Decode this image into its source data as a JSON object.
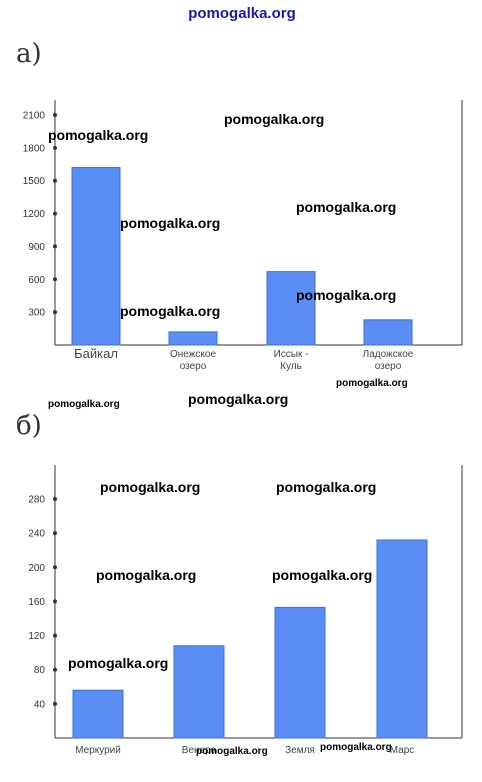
{
  "chart_data": [
    {
      "type": "bar",
      "part_label": "а)",
      "categories": [
        [
          "Байкал"
        ],
        [
          "Онежское",
          "озеро"
        ],
        [
          "Иссык -",
          "Куль"
        ],
        [
          "Ладожское",
          "озеро"
        ]
      ],
      "values": [
        1620,
        120,
        670,
        230
      ],
      "y_ticks": [
        300,
        600,
        900,
        1200,
        1500,
        1800,
        2100
      ],
      "ylim": [
        0,
        2100
      ],
      "xlabel": "",
      "ylabel": "",
      "grid": false
    },
    {
      "type": "bar",
      "part_label": "б)",
      "categories": [
        [
          "Меркурий"
        ],
        [
          "Венера"
        ],
        [
          "Земля"
        ],
        [
          "Марс"
        ]
      ],
      "values": [
        56,
        108,
        153,
        232
      ],
      "y_ticks": [
        40,
        80,
        120,
        160,
        200,
        240,
        280
      ],
      "ylim": [
        0,
        280
      ],
      "xlabel": "",
      "ylabel": "",
      "grid": false
    }
  ],
  "watermark": "pomogalka.org",
  "colors": {
    "bar_fill": "#5b8ef5",
    "bar_stroke": "#3b6fd8",
    "axis": "#333333"
  }
}
